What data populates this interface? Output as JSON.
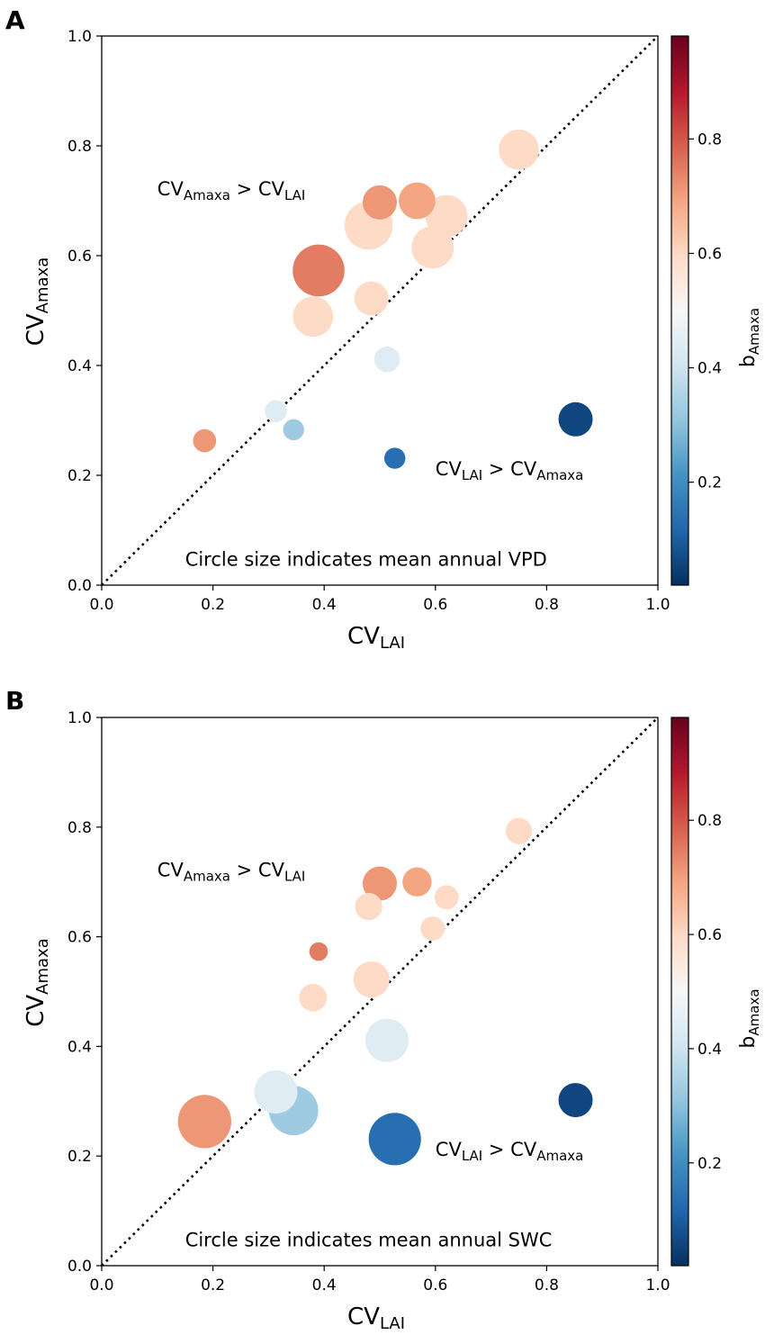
{
  "chart_data": [
    {
      "type": "scatter",
      "panel_label": "A",
      "xlabel": {
        "main": "CV",
        "sub": "LAI"
      },
      "ylabel": {
        "main": "CV",
        "sub": "Amaxa"
      },
      "xlim": [
        0,
        1
      ],
      "ylim": [
        0,
        1
      ],
      "xticks": [
        "0.0",
        "0.2",
        "0.4",
        "0.6",
        "0.8",
        "1.0"
      ],
      "yticks": [
        "0.0",
        "0.2",
        "0.4",
        "0.6",
        "0.8",
        "1.0"
      ],
      "reference_line": "1:1 dotted",
      "annotations": [
        {
          "parts": [
            {
              "t": "CV",
              "s": false
            },
            {
              "t": "Amaxa",
              "s": true
            },
            {
              "t": " > CV",
              "s": false
            },
            {
              "t": "LAI",
              "s": true
            }
          ],
          "x": 0.1,
          "y": 0.71
        },
        {
          "parts": [
            {
              "t": "CV",
              "s": false
            },
            {
              "t": "LAI",
              "s": true
            },
            {
              "t": " > CV",
              "s": false
            },
            {
              "t": "Amaxa",
              "s": true
            }
          ],
          "x": 0.6,
          "y": 0.2
        },
        {
          "parts": [
            {
              "t": "Circle size indicates mean annual VPD",
              "s": false
            }
          ],
          "x": 0.15,
          "y": 0.035
        }
      ],
      "colorbar": {
        "label": {
          "main": "b",
          "sub": "Amaxa"
        },
        "range": [
          0.02,
          0.98
        ],
        "ticks": [
          "0.2",
          "0.4",
          "0.6",
          "0.8"
        ],
        "tick_values": [
          0.2,
          0.4,
          0.6,
          0.8
        ]
      },
      "points": [
        {
          "x": 0.75,
          "y": 0.793,
          "color": 0.6,
          "size": 0.62
        },
        {
          "x": 0.5,
          "y": 0.697,
          "color": 0.72,
          "size": 0.5
        },
        {
          "x": 0.567,
          "y": 0.7,
          "color": 0.7,
          "size": 0.55
        },
        {
          "x": 0.48,
          "y": 0.655,
          "color": 0.6,
          "size": 0.78
        },
        {
          "x": 0.62,
          "y": 0.672,
          "color": 0.6,
          "size": 0.66
        },
        {
          "x": 0.595,
          "y": 0.615,
          "color": 0.6,
          "size": 0.66
        },
        {
          "x": 0.39,
          "y": 0.573,
          "color": 0.76,
          "size": 0.85
        },
        {
          "x": 0.485,
          "y": 0.522,
          "color": 0.6,
          "size": 0.5
        },
        {
          "x": 0.38,
          "y": 0.489,
          "color": 0.6,
          "size": 0.62
        },
        {
          "x": 0.513,
          "y": 0.411,
          "color": 0.44,
          "size": 0.33
        },
        {
          "x": 0.313,
          "y": 0.317,
          "color": 0.44,
          "size": 0.26
        },
        {
          "x": 0.345,
          "y": 0.283,
          "color": 0.32,
          "size": 0.24
        },
        {
          "x": 0.185,
          "y": 0.263,
          "color": 0.72,
          "size": 0.28
        },
        {
          "x": 0.527,
          "y": 0.231,
          "color": 0.12,
          "size": 0.24
        },
        {
          "x": 0.852,
          "y": 0.302,
          "color": 0.04,
          "size": 0.5
        }
      ]
    },
    {
      "type": "scatter",
      "panel_label": "B",
      "xlabel": {
        "main": "CV",
        "sub": "LAI"
      },
      "ylabel": {
        "main": "CV",
        "sub": "Amaxa"
      },
      "xlim": [
        0,
        1
      ],
      "ylim": [
        0,
        1
      ],
      "xticks": [
        "0.0",
        "0.2",
        "0.4",
        "0.6",
        "0.8",
        "1.0"
      ],
      "yticks": [
        "0.0",
        "0.2",
        "0.4",
        "0.6",
        "0.8",
        "1.0"
      ],
      "reference_line": "1:1 dotted",
      "annotations": [
        {
          "parts": [
            {
              "t": "CV",
              "s": false
            },
            {
              "t": "Amaxa",
              "s": true
            },
            {
              "t": " > CV",
              "s": false
            },
            {
              "t": "LAI",
              "s": true
            }
          ],
          "x": 0.1,
          "y": 0.71
        },
        {
          "parts": [
            {
              "t": "CV",
              "s": false
            },
            {
              "t": "LAI",
              "s": true
            },
            {
              "t": " > CV",
              "s": false
            },
            {
              "t": "Amaxa",
              "s": true
            }
          ],
          "x": 0.6,
          "y": 0.2
        },
        {
          "parts": [
            {
              "t": "Circle size indicates mean annual SWC",
              "s": false
            }
          ],
          "x": 0.15,
          "y": 0.035
        }
      ],
      "colorbar": {
        "label": {
          "main": "b",
          "sub": "Amaxa"
        },
        "range": [
          0.02,
          0.98
        ],
        "ticks": [
          "0.2",
          "0.4",
          "0.6",
          "0.8"
        ],
        "tick_values": [
          0.2,
          0.4,
          0.6,
          0.8
        ]
      },
      "points": [
        {
          "x": 0.75,
          "y": 0.793,
          "color": 0.6,
          "size": 0.34
        },
        {
          "x": 0.5,
          "y": 0.697,
          "color": 0.72,
          "size": 0.5
        },
        {
          "x": 0.567,
          "y": 0.7,
          "color": 0.7,
          "size": 0.4
        },
        {
          "x": 0.48,
          "y": 0.655,
          "color": 0.6,
          "size": 0.36
        },
        {
          "x": 0.62,
          "y": 0.672,
          "color": 0.6,
          "size": 0.3
        },
        {
          "x": 0.595,
          "y": 0.615,
          "color": 0.6,
          "size": 0.3
        },
        {
          "x": 0.39,
          "y": 0.573,
          "color": 0.76,
          "size": 0.19
        },
        {
          "x": 0.485,
          "y": 0.522,
          "color": 0.6,
          "size": 0.54
        },
        {
          "x": 0.38,
          "y": 0.489,
          "color": 0.6,
          "size": 0.37
        },
        {
          "x": 0.513,
          "y": 0.411,
          "color": 0.44,
          "size": 0.68
        },
        {
          "x": 0.313,
          "y": 0.317,
          "color": 0.44,
          "size": 0.68
        },
        {
          "x": 0.345,
          "y": 0.283,
          "color": 0.32,
          "size": 0.8
        },
        {
          "x": 0.185,
          "y": 0.263,
          "color": 0.72,
          "size": 0.88
        },
        {
          "x": 0.527,
          "y": 0.231,
          "color": 0.12,
          "size": 0.86
        },
        {
          "x": 0.852,
          "y": 0.302,
          "color": 0.04,
          "size": 0.5
        }
      ]
    }
  ]
}
